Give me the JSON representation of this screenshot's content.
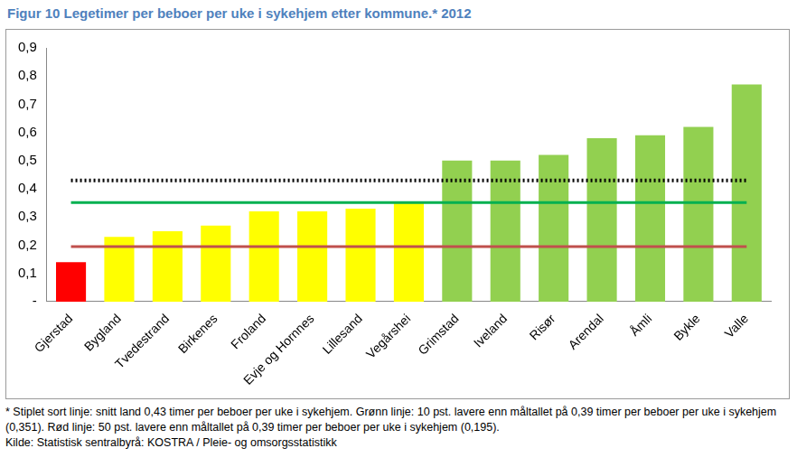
{
  "chart_data": {
    "type": "bar",
    "title": "Figur 10 Legetimer per beboer per uke i sykehjem etter kommune.* 2012",
    "categories": [
      "Gjerstad",
      "Bygland",
      "Tvedestrand",
      "Birkenes",
      "Froland",
      "Evje og Hornnes",
      "Lillesand",
      "Vegårshei",
      "Grimstad",
      "Iveland",
      "Risør",
      "Arendal",
      "Åmli",
      "Bykle",
      "Valle"
    ],
    "series": [
      {
        "type": "bar",
        "values": [
          0.14,
          0.23,
          0.25,
          0.27,
          0.32,
          0.32,
          0.33,
          0.35,
          0.5,
          0.5,
          0.52,
          0.58,
          0.59,
          0.62,
          0.77
        ],
        "colors": [
          "#ff0000",
          "#ffff00",
          "#ffff00",
          "#ffff00",
          "#ffff00",
          "#ffff00",
          "#ffff00",
          "#ffff00",
          "#92d050",
          "#92d050",
          "#92d050",
          "#92d050",
          "#92d050",
          "#92d050",
          "#92d050"
        ]
      },
      {
        "type": "line",
        "color": "#000000",
        "line_style": "dotted",
        "values": [
          0.43,
          0.43,
          0.43,
          0.43,
          0.43,
          0.43,
          0.43,
          0.43,
          0.43,
          0.43,
          0.43,
          0.43,
          0.43,
          0.43,
          0.43
        ]
      },
      {
        "type": "line",
        "color": "#00b050",
        "line_style": "solid",
        "values": [
          0.351,
          0.351,
          0.351,
          0.351,
          0.351,
          0.351,
          0.351,
          0.351,
          0.351,
          0.351,
          0.351,
          0.351,
          0.351,
          0.351,
          0.351
        ]
      },
      {
        "type": "line",
        "color": "#c0504d",
        "line_style": "solid",
        "values": [
          0.195,
          0.195,
          0.195,
          0.195,
          0.195,
          0.195,
          0.195,
          0.195,
          0.195,
          0.195,
          0.195,
          0.195,
          0.195,
          0.195,
          0.195
        ]
      }
    ],
    "ylim": [
      0,
      0.9
    ],
    "yticks": [
      {
        "value": 0,
        "label": "-"
      },
      {
        "value": 0.1,
        "label": "0,1"
      },
      {
        "value": 0.2,
        "label": "0,2"
      },
      {
        "value": 0.3,
        "label": "0,3"
      },
      {
        "value": 0.4,
        "label": "0,4"
      },
      {
        "value": 0.5,
        "label": "0,5"
      },
      {
        "value": 0.6,
        "label": "0,6"
      },
      {
        "value": 0.7,
        "label": "0,7"
      },
      {
        "value": 0.8,
        "label": "0,8"
      },
      {
        "value": 0.9,
        "label": "0,9"
      }
    ],
    "grid": false,
    "notes": [
      "* Stiplet sort linje: snitt land 0,43 timer per beboer per uke i sykehjem. Grønn linje: 10 pst. lavere enn måltallet på 0,39 timer per beboer per uke i sykehjem (0,351). Rød linje: 50 pst. lavere enn måltallet på 0,39 timer per beboer per uke i sykehjem (0,195)."
    ],
    "source": "Kilde: Statistisk sentralbyrå: KOSTRA / Pleie- og omsorgsstatistikk"
  }
}
